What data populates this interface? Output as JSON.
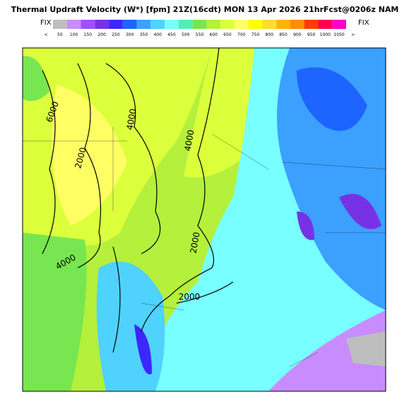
{
  "header": {
    "title": "Thermal Updraft Velocity (W*) [fpm] 21Z(16cdt) MON 13 Apr 2026 21hrFcst@0206z NAM",
    "fix_left": "FIX",
    "fix_right": "FIX"
  },
  "colorbar": {
    "colors": [
      "#bebebe",
      "#c88cff",
      "#a050ff",
      "#7832e6",
      "#3c28ff",
      "#1e64ff",
      "#3ca0ff",
      "#50d2ff",
      "#78ffff",
      "#50f0b4",
      "#78e650",
      "#b4f03c",
      "#dcff3c",
      "#ffff64",
      "#ffff00",
      "#ffdc32",
      "#ffb400",
      "#ff8c00",
      "#ff3c00",
      "#ff0050",
      "#ff00c8"
    ],
    "labels": [
      "<",
      "50",
      "100",
      "150",
      "200",
      "250",
      "300",
      "350",
      "400",
      "450",
      "500",
      "550",
      "600",
      "650",
      "700",
      "750",
      "800",
      "850",
      "900",
      "950",
      "1000",
      "1050",
      ">"
    ]
  },
  "contours": [
    "6000",
    "4000",
    "2000",
    "4000",
    "2000",
    "4000",
    "2000"
  ]
}
